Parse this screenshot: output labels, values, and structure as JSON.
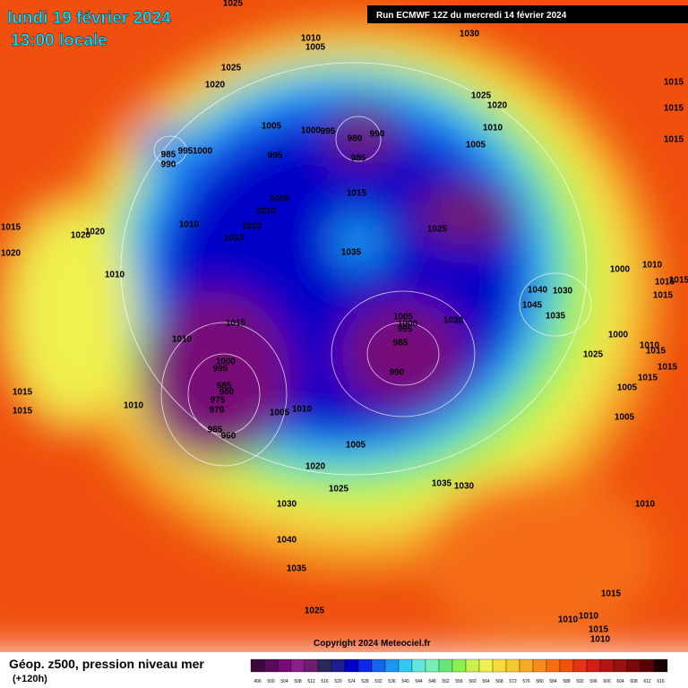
{
  "header": {
    "date": "lundi 19 février 2024",
    "time": "13:00 locale",
    "run": "Run ECMWF 12Z du mercredi 14 février 2024"
  },
  "footer": {
    "title": "Géop. z500, pression niveau mer",
    "lead": "(+120h)",
    "copyright": "Copyright 2024 Meteociel.fr"
  },
  "legend": {
    "labels": [
      "496",
      "500",
      "504",
      "508",
      "512",
      "516",
      "520",
      "524",
      "528",
      "532",
      "536",
      "540",
      "544",
      "548",
      "552",
      "556",
      "560",
      "564",
      "568",
      "572",
      "576",
      "580",
      "584",
      "588",
      "592",
      "596",
      "600",
      "604",
      "608",
      "612",
      "616"
    ],
    "colors": [
      "#3c0a3c",
      "#5a0a5a",
      "#780a78",
      "#8c1e8c",
      "#6e1e6e",
      "#28285a",
      "#1e1e8c",
      "#0000c8",
      "#0a28e6",
      "#1464f0",
      "#1e96f0",
      "#32c8f0",
      "#64e6dc",
      "#78f0b4",
      "#64e678",
      "#8cf050",
      "#c8f050",
      "#f0f050",
      "#f5dc3c",
      "#f5c832",
      "#f5aa28",
      "#f58c1e",
      "#f56e14",
      "#f0500a",
      "#e63214",
      "#d21e14",
      "#b41414",
      "#961010",
      "#780a0a",
      "#5a0505",
      "#1e0000"
    ]
  },
  "isobar_labels": [
    "1025",
    "1030",
    "1010",
    "1005",
    "1025",
    "1020",
    "1015",
    "1025",
    "1020",
    "1015",
    "1005",
    "1000",
    "995",
    "980",
    "990",
    "1010",
    "985",
    "995",
    "1000",
    "990",
    "985",
    "1005",
    "1015",
    "995",
    "1015",
    "1005",
    "1010",
    "1010",
    "1010",
    "1010",
    "1025",
    "1015",
    "1020",
    "1020",
    "1020",
    "1035",
    "1010",
    "1000",
    "1010",
    "1040",
    "1030",
    "1015",
    "1045",
    "1035",
    "1015",
    "1005",
    "1030",
    "1000",
    "995",
    "1010",
    "985",
    "1000",
    "1010",
    "1025",
    "1000",
    "995",
    "990",
    "985",
    "980",
    "975",
    "970",
    "1015",
    "1015",
    "1010",
    "1005",
    "1010",
    "965",
    "960",
    "1005",
    "1005",
    "1020",
    "1025",
    "1035",
    "1030",
    "1030",
    "1010",
    "1040",
    "1035",
    "1015",
    "1025",
    "1010",
    "1010",
    "1015",
    "1010",
    "1015",
    "1015",
    "1015",
    "1005",
    "1015",
    "1015"
  ]
}
